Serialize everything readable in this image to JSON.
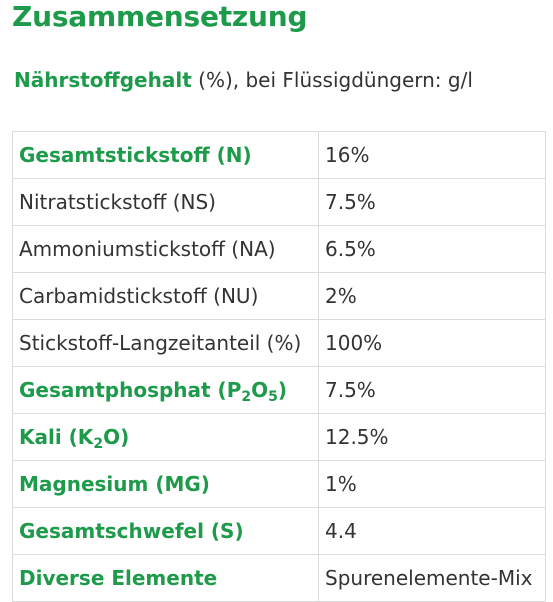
{
  "header": {
    "title": "Zusammensetzung"
  },
  "intro": {
    "strong": "Nährstoffgehalt",
    "rest": " (%), bei Flüssigdüngern: g/l"
  },
  "table": {
    "rows": [
      {
        "label": "Gesamtstickstoff (N)",
        "value": "16%",
        "bold": true
      },
      {
        "label": "Nitratstickstoff (NS)",
        "value": "7.5%",
        "bold": false
      },
      {
        "label": "Ammoniumstickstoff (NA)",
        "value": "6.5%",
        "bold": false
      },
      {
        "label": "Carbamidstickstoff (NU)",
        "value": "2%",
        "bold": false
      },
      {
        "label": "Stickstoff-Langzeitanteil (%)",
        "value": "100%",
        "bold": false
      },
      {
        "label_parts": [
          "Gesamtphosphat (P",
          "2",
          "O",
          "5",
          ")"
        ],
        "value": "7.5%",
        "bold": true
      },
      {
        "label_parts": [
          "Kali (K",
          "2",
          "O)"
        ],
        "value": "12.5%",
        "bold": true
      },
      {
        "label": "Magnesium (MG)",
        "value": "1%",
        "bold": true
      },
      {
        "label": "Gesamtschwefel (S)",
        "value": "4.4",
        "bold": true
      },
      {
        "label": "Diverse Elemente",
        "value": "Spurenelemente-Mix",
        "bold": true
      }
    ]
  }
}
